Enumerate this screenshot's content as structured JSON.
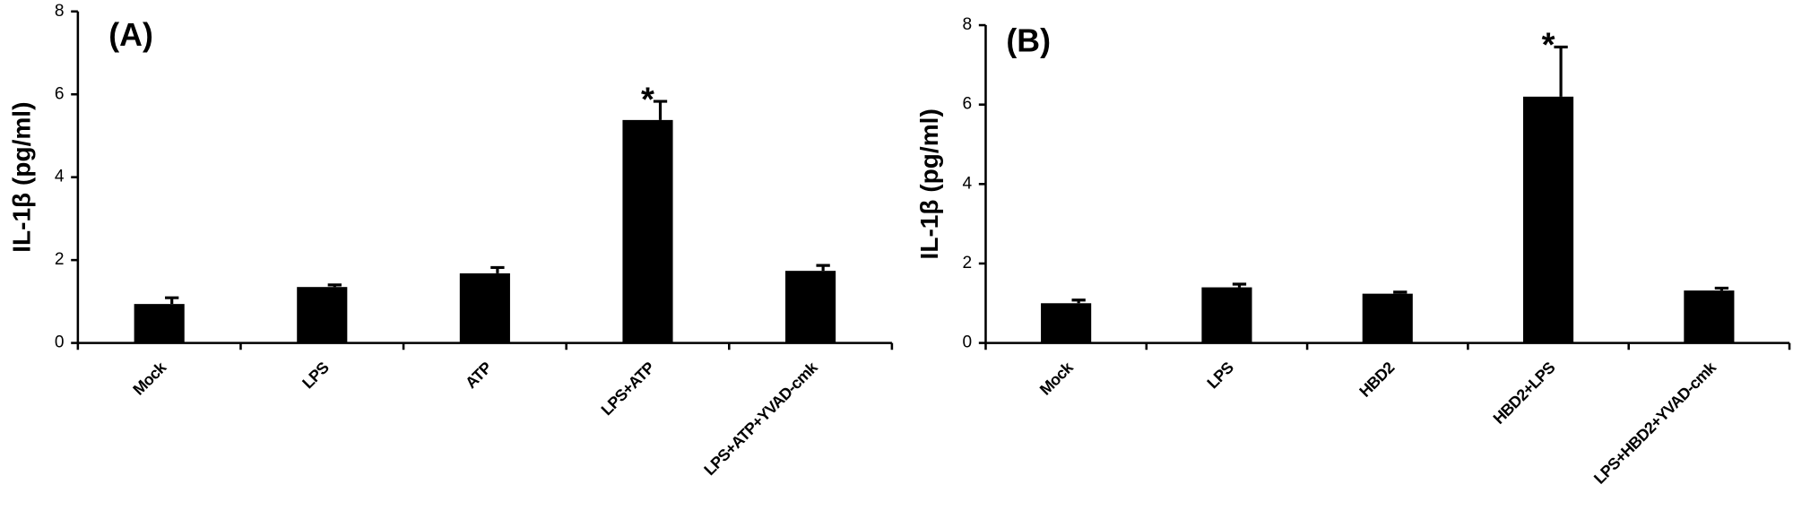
{
  "chart_data": [
    {
      "type": "bar",
      "title": "(A)",
      "y_label": "IL-1β (pg/ml)",
      "categories": [
        "Mock",
        "LPS",
        "ATP",
        "LPS+ATP",
        "LPS+ATP+YVAD-cmk"
      ],
      "values": [
        0.94,
        1.35,
        1.68,
        5.38,
        1.74
      ],
      "errors": [
        0.15,
        0.05,
        0.14,
        0.45,
        0.13
      ],
      "color": "#000000",
      "ylim": [
        0,
        8
      ],
      "yticks": [
        0,
        2,
        4,
        6,
        8
      ],
      "annotations": [
        {
          "text": "*",
          "category": "LPS+ATP"
        }
      ]
    },
    {
      "type": "bar",
      "title": "(B)",
      "y_label": "IL-1β (pg/ml)",
      "categories": [
        "Mock",
        "LPS",
        "HBD2",
        "HBD2+LPS",
        "LPS+HBD2+YVAD-cmk"
      ],
      "values": [
        1.0,
        1.4,
        1.24,
        6.2,
        1.32
      ],
      "errors": [
        0.08,
        0.08,
        0.04,
        1.25,
        0.06
      ],
      "color": "#000000",
      "ylim": [
        0,
        8
      ],
      "yticks": [
        0,
        2,
        4,
        6,
        8
      ],
      "annotations": [
        {
          "text": "*",
          "category": "HBD2+LPS"
        }
      ]
    }
  ]
}
